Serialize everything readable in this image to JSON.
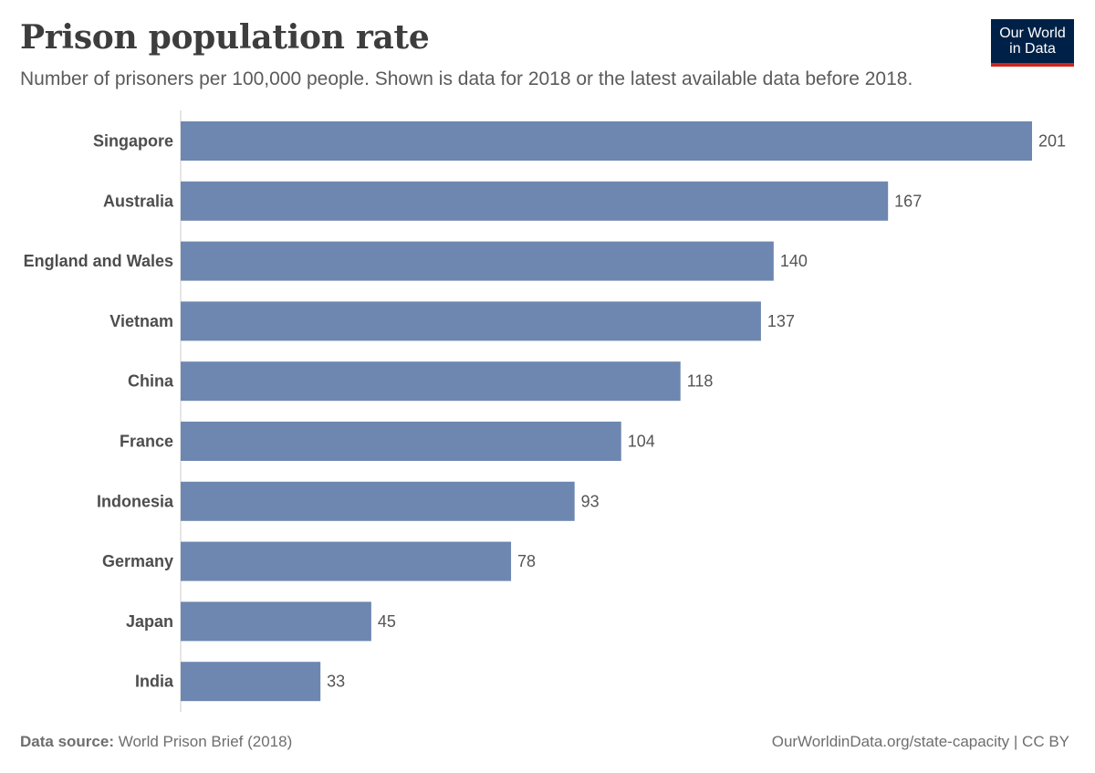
{
  "header": {
    "title": "Prison population rate",
    "subtitle": "Number of prisoners per 100,000 people. Shown is data for 2018 or the latest available data before 2018."
  },
  "logo": {
    "line1": "Our World",
    "line2": "in Data",
    "bg_color": "#002147",
    "accent_color": "#ce261e"
  },
  "footer": {
    "source_label": "Data source:",
    "source_value": "World Prison Brief (2018)",
    "right_text": "OurWorldinData.org/state-capacity | CC BY"
  },
  "chart_data": {
    "type": "bar",
    "orientation": "horizontal",
    "categories": [
      "Singapore",
      "Australia",
      "England and Wales",
      "Vietnam",
      "China",
      "France",
      "Indonesia",
      "Germany",
      "Japan",
      "India"
    ],
    "values": [
      201,
      167,
      140,
      137,
      118,
      104,
      93,
      78,
      45,
      33
    ],
    "bar_color": "#6d87b0",
    "xlim": [
      0,
      201
    ],
    "grid": false,
    "data_labels": true
  }
}
